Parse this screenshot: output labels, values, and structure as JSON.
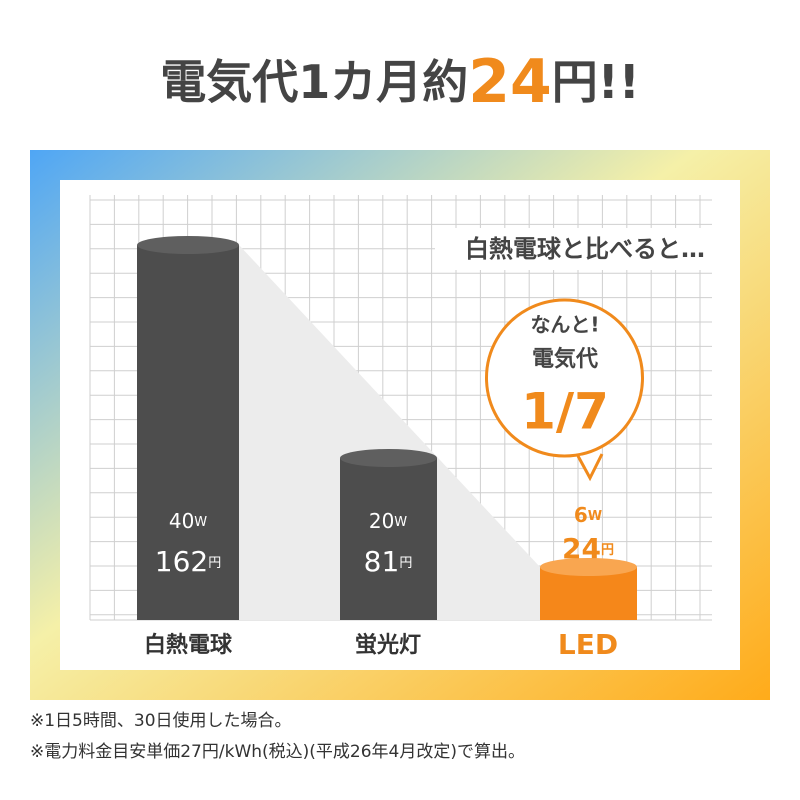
{
  "title": {
    "prefix": "電気代1カ月約",
    "amount": "24",
    "suffix": "円!!"
  },
  "comparison": "白熱電球と比べると…",
  "bubble": {
    "line1": "なんと!",
    "line2": "電気代",
    "ratio": "1/7"
  },
  "items": [
    {
      "name": "白熱電球",
      "watts": 40,
      "watt_unit": "W",
      "cost": 162,
      "cost_unit": "円"
    },
    {
      "name": "蛍光灯",
      "watts": 20,
      "watt_unit": "W",
      "cost": 81,
      "cost_unit": "円"
    },
    {
      "name": "LED",
      "watts": 6,
      "watt_unit": "W",
      "cost": 24,
      "cost_unit": "円"
    }
  ],
  "notes": [
    "※1日5時間、30日使用した場合。",
    "※電力料金目安単価27円/kWh(税込)(平成26年4月改定)で算出。"
  ]
}
